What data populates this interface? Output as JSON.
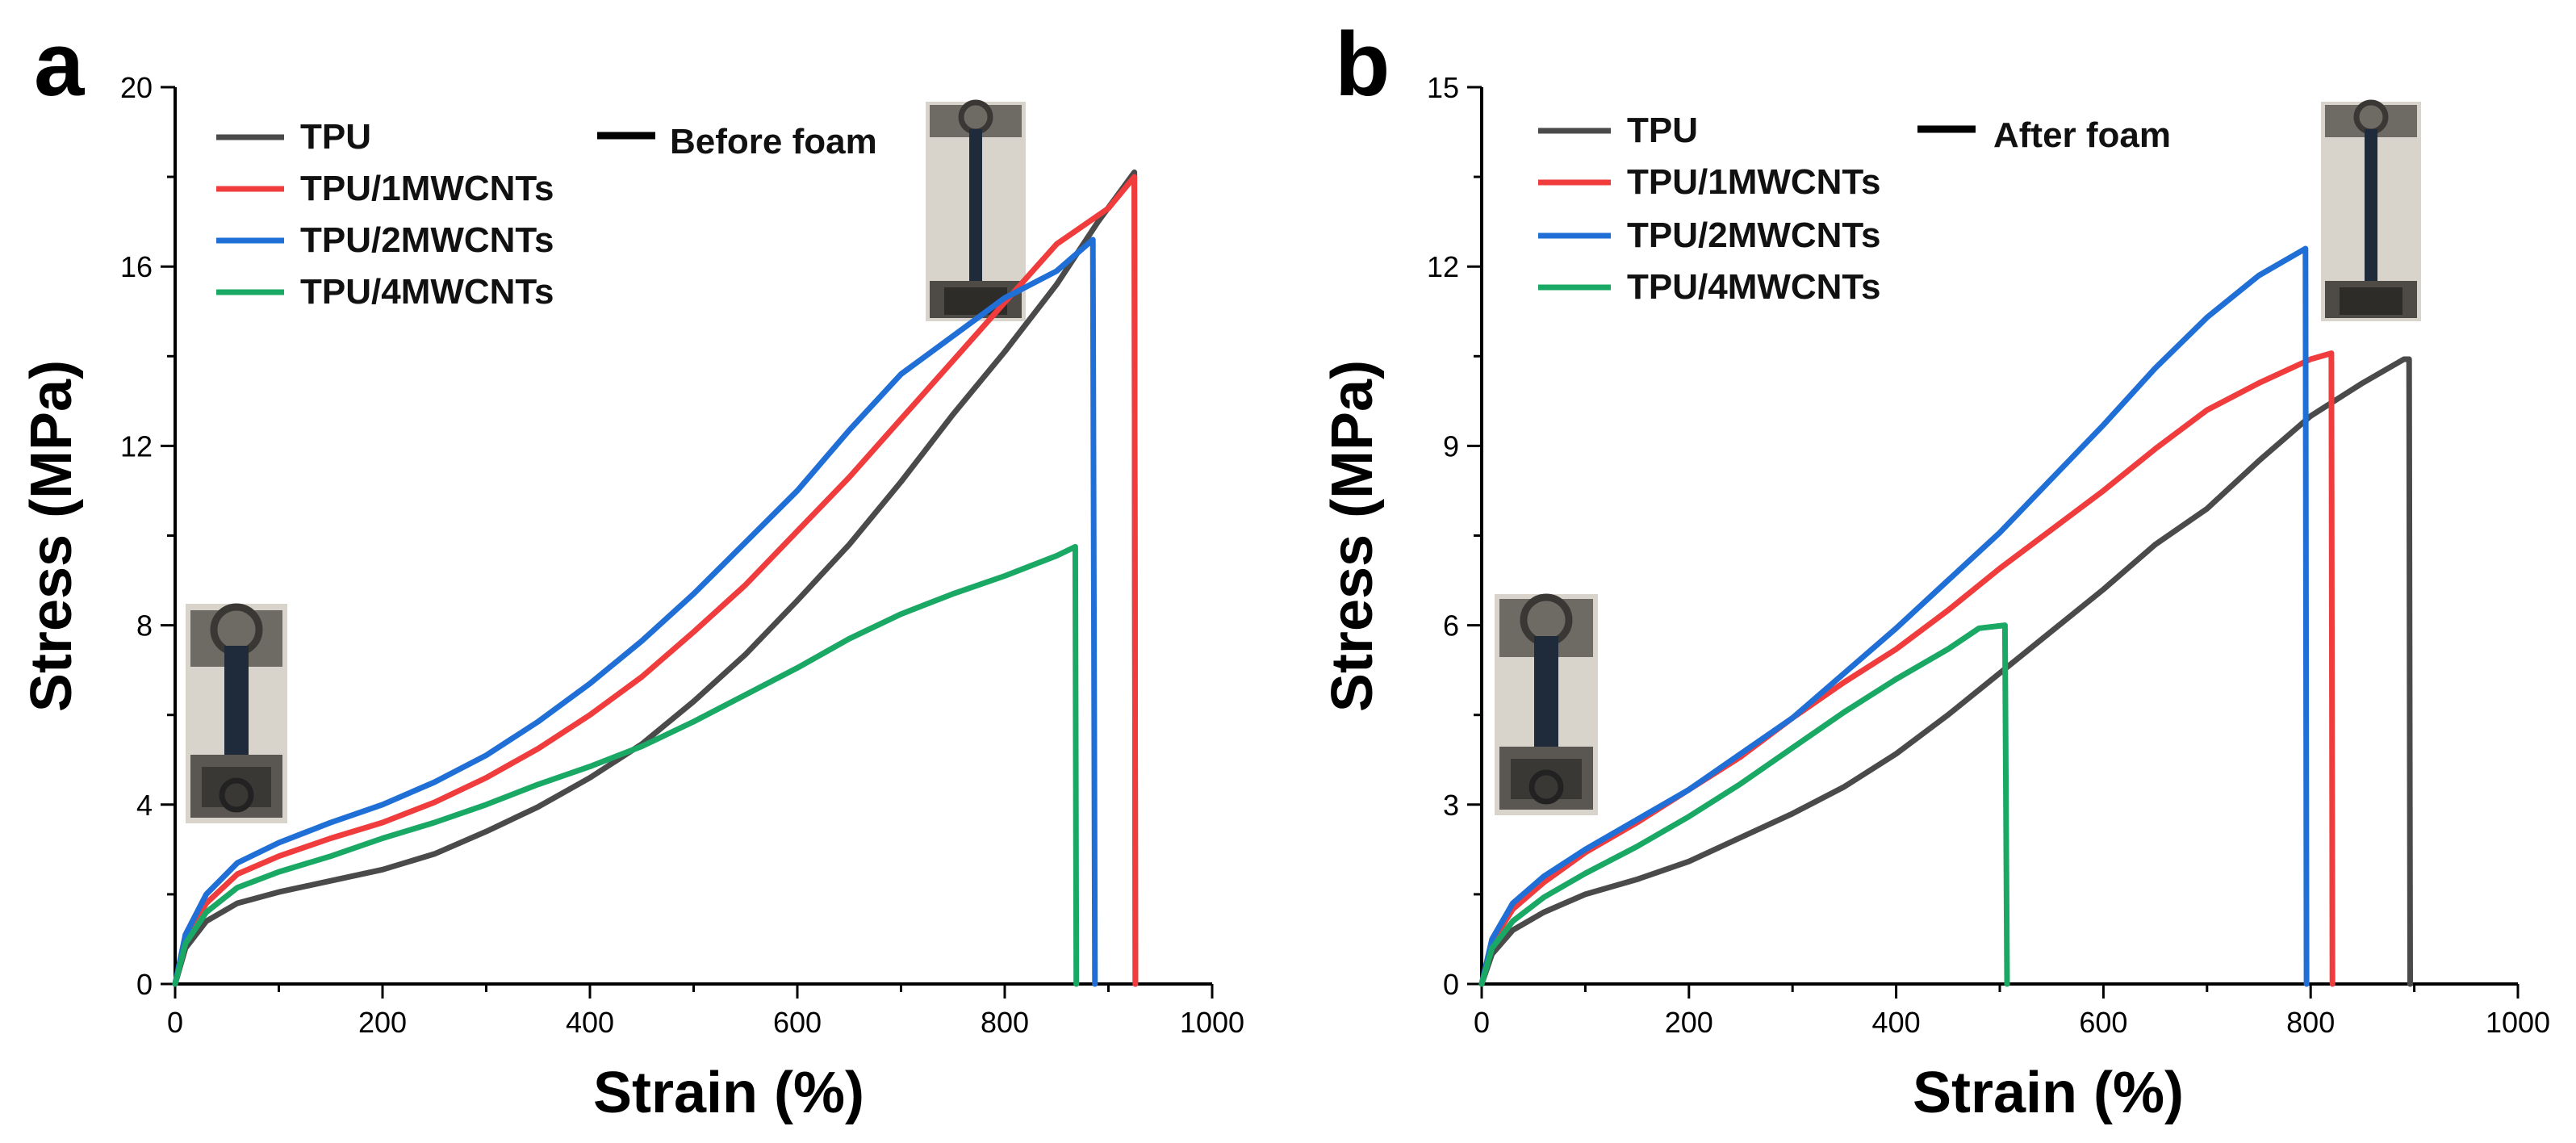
{
  "chart_data": [
    {
      "panel": "a",
      "type": "line",
      "xlabel": "Strain (%)",
      "ylabel": "Stress (MPa)",
      "xlim": [
        0,
        1000
      ],
      "ylim": [
        0,
        20
      ],
      "xticks": [
        0,
        200,
        400,
        600,
        800,
        1000
      ],
      "yticks": [
        0,
        4,
        8,
        12,
        16,
        20
      ],
      "legend_note": "Before foam",
      "series": [
        {
          "name": "TPU",
          "color": "#4a4a4a",
          "x": [
            0,
            10,
            30,
            60,
            100,
            150,
            200,
            250,
            300,
            350,
            400,
            450,
            500,
            550,
            600,
            650,
            700,
            750,
            800,
            850,
            890,
            925,
            926
          ],
          "y": [
            0,
            0.8,
            1.4,
            1.8,
            2.05,
            2.3,
            2.55,
            2.9,
            3.4,
            3.95,
            4.6,
            5.35,
            6.3,
            7.35,
            8.55,
            9.8,
            11.2,
            12.7,
            14.1,
            15.6,
            17.0,
            18.1,
            0
          ]
        },
        {
          "name": "TPU/1MWCNTs",
          "color": "#f03c3c",
          "x": [
            0,
            10,
            30,
            60,
            100,
            150,
            200,
            250,
            300,
            350,
            400,
            450,
            500,
            550,
            600,
            650,
            700,
            750,
            800,
            850,
            900,
            925,
            926
          ],
          "y": [
            0,
            1.0,
            1.8,
            2.45,
            2.85,
            3.25,
            3.6,
            4.05,
            4.6,
            5.25,
            6.0,
            6.85,
            7.85,
            8.9,
            10.1,
            11.3,
            12.6,
            13.9,
            15.2,
            16.5,
            17.3,
            18.0,
            0
          ]
        },
        {
          "name": "TPU/2MWCNTs",
          "color": "#1f6fd6",
          "x": [
            0,
            10,
            30,
            60,
            100,
            150,
            200,
            250,
            300,
            350,
            400,
            450,
            500,
            550,
            600,
            650,
            700,
            750,
            800,
            850,
            885,
            887
          ],
          "y": [
            0,
            1.1,
            2.0,
            2.7,
            3.15,
            3.6,
            4.0,
            4.5,
            5.1,
            5.85,
            6.7,
            7.65,
            8.7,
            9.85,
            11.0,
            12.35,
            13.6,
            14.45,
            15.3,
            15.9,
            16.6,
            0
          ]
        },
        {
          "name": "TPU/4MWCNTs",
          "color": "#1aa865",
          "x": [
            0,
            10,
            30,
            60,
            100,
            150,
            200,
            250,
            300,
            350,
            400,
            450,
            500,
            550,
            600,
            650,
            700,
            750,
            800,
            850,
            868,
            869
          ],
          "y": [
            0,
            0.9,
            1.6,
            2.15,
            2.5,
            2.85,
            3.25,
            3.6,
            4.0,
            4.45,
            4.85,
            5.3,
            5.85,
            6.45,
            7.05,
            7.7,
            8.25,
            8.7,
            9.1,
            9.55,
            9.75,
            0
          ]
        }
      ]
    },
    {
      "panel": "b",
      "type": "line",
      "xlabel": "Strain (%)",
      "ylabel": "Stress (MPa)",
      "xlim": [
        0,
        1000
      ],
      "ylim": [
        0,
        15
      ],
      "xticks": [
        0,
        200,
        400,
        600,
        800,
        1000
      ],
      "yticks": [
        0,
        3,
        6,
        9,
        12,
        15
      ],
      "legend_note": "After foam",
      "series": [
        {
          "name": "TPU",
          "color": "#4a4a4a",
          "x": [
            0,
            10,
            30,
            60,
            100,
            150,
            200,
            250,
            300,
            350,
            400,
            450,
            500,
            550,
            600,
            650,
            700,
            750,
            800,
            850,
            890,
            895,
            896
          ],
          "y": [
            0,
            0.5,
            0.9,
            1.2,
            1.5,
            1.75,
            2.05,
            2.45,
            2.85,
            3.3,
            3.85,
            4.5,
            5.2,
            5.9,
            6.6,
            7.35,
            7.95,
            8.75,
            9.5,
            10.05,
            10.45,
            10.45,
            0
          ]
        },
        {
          "name": "TPU/1MWCNTs",
          "color": "#f03c3c",
          "x": [
            0,
            10,
            30,
            60,
            100,
            150,
            200,
            250,
            300,
            350,
            400,
            450,
            500,
            550,
            600,
            650,
            700,
            750,
            800,
            820,
            821
          ],
          "y": [
            0,
            0.7,
            1.25,
            1.7,
            2.2,
            2.7,
            3.25,
            3.8,
            4.45,
            5.05,
            5.6,
            6.25,
            6.95,
            7.6,
            8.25,
            8.95,
            9.6,
            10.05,
            10.45,
            10.55,
            0
          ]
        },
        {
          "name": "TPU/2MWCNTs",
          "color": "#1f6fd6",
          "x": [
            0,
            10,
            30,
            60,
            100,
            150,
            200,
            250,
            300,
            350,
            400,
            450,
            500,
            550,
            600,
            650,
            700,
            750,
            795,
            796
          ],
          "y": [
            0,
            0.75,
            1.35,
            1.8,
            2.25,
            2.75,
            3.25,
            3.85,
            4.45,
            5.2,
            5.95,
            6.75,
            7.55,
            8.45,
            9.35,
            10.3,
            11.15,
            11.85,
            12.3,
            0
          ]
        },
        {
          "name": "TPU/4MWCNTs",
          "color": "#1aa865",
          "x": [
            0,
            10,
            30,
            60,
            100,
            150,
            200,
            250,
            300,
            350,
            400,
            450,
            480,
            505,
            507
          ],
          "y": [
            0,
            0.6,
            1.05,
            1.45,
            1.85,
            2.3,
            2.8,
            3.35,
            3.95,
            4.55,
            5.1,
            5.6,
            5.95,
            6.0,
            0
          ]
        }
      ]
    }
  ]
}
